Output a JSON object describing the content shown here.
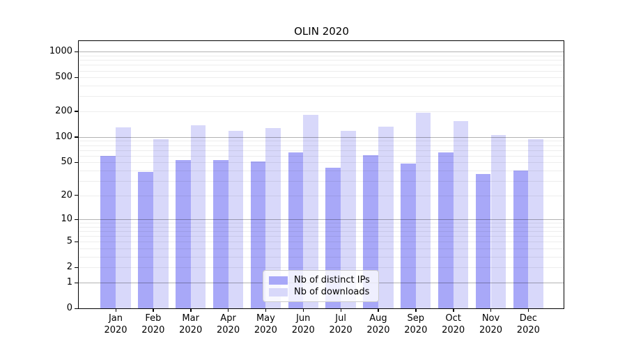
{
  "chart_data": {
    "type": "bar",
    "title": "OLIN 2020",
    "categories": [
      "Jan",
      "Feb",
      "Mar",
      "Apr",
      "May",
      "Jun",
      "Jul",
      "Aug",
      "Sep",
      "Oct",
      "Nov",
      "Dec"
    ],
    "category_year": "2020",
    "series": [
      {
        "name": "Nb of distinct IPs",
        "color": "#a8a8f8",
        "values": [
          60,
          38,
          53,
          53,
          51,
          66,
          43,
          61,
          48,
          65,
          36,
          40
        ]
      },
      {
        "name": "Nb of downloads",
        "color": "#d8d8fa",
        "values": [
          130,
          94,
          137,
          118,
          126,
          183,
          119,
          133,
          191,
          153,
          105,
          94
        ]
      }
    ],
    "y_axis": {
      "scale": "log1p",
      "tick_labels": [
        "0",
        "1",
        "2",
        "5",
        "10",
        "20",
        "50",
        "100",
        "200",
        "500",
        "1000"
      ],
      "ticks": [
        0,
        1,
        2,
        5,
        10,
        20,
        50,
        100,
        200,
        500,
        1000
      ],
      "major_gridlines": [
        1,
        10,
        100,
        1000
      ],
      "minor_gridlines": [
        2,
        3,
        4,
        5,
        6,
        7,
        8,
        9,
        20,
        30,
        40,
        50,
        60,
        70,
        80,
        90,
        200,
        300,
        400,
        500,
        600,
        700,
        800,
        900
      ],
      "ymin": 0,
      "ymax": 1333
    },
    "x_axis": {
      "tick_per_group": true
    },
    "legend": {
      "position": "lower center"
    },
    "grid": true
  }
}
